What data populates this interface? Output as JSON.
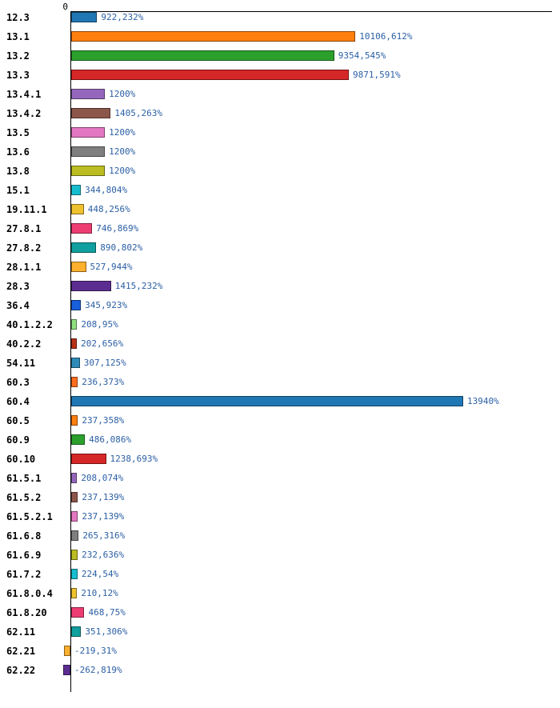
{
  "chart_data": {
    "type": "bar",
    "orientation": "horizontal",
    "title": "",
    "xlabel": "",
    "ylabel": "",
    "grid": false,
    "legend": false,
    "x_axis": {
      "zero_label": "0",
      "position": "top"
    },
    "xlim": [
      -300,
      17100
    ],
    "axis_color": "#000000",
    "category_label_color": "#000000",
    "value_label_color": "#2b5fa5",
    "categories": [
      "12.3",
      "13.1",
      "13.2",
      "13.3",
      "13.4.1",
      "13.4.2",
      "13.5",
      "13.6",
      "13.8",
      "15.1",
      "19.11.1",
      "27.8.1",
      "27.8.2",
      "28.1.1",
      "28.3",
      "36.4",
      "40.1.2.2",
      "40.2.2",
      "54.11",
      "60.3",
      "60.4",
      "60.5",
      "60.9",
      "60.10",
      "61.5.1",
      "61.5.2",
      "61.5.2.1",
      "61.6.8",
      "61.6.9",
      "61.7.2",
      "61.8.0.4",
      "61.8.20",
      "62.11",
      "62.21",
      "62.22"
    ],
    "values": [
      922.232,
      10106.612,
      9354.545,
      9871.591,
      1200,
      1405.263,
      1200,
      1200,
      1200,
      344.804,
      448.256,
      746.869,
      890.802,
      527.944,
      1415.232,
      345.923,
      208.95,
      202.656,
      307.125,
      236.373,
      13940,
      237.358,
      486.086,
      1238.693,
      208.074,
      237.139,
      237.139,
      265.316,
      232.636,
      224.54,
      210.12,
      468.75,
      351.306,
      -219.31,
      -262.819
    ],
    "value_labels": [
      "922,232%",
      "10106,612%",
      "9354,545%",
      "9871,591%",
      "1200%",
      "1405,263%",
      "1200%",
      "1200%",
      "1200%",
      "344,804%",
      "448,256%",
      "746,869%",
      "890,802%",
      "527,944%",
      "1415,232%",
      "345,923%",
      "208,95%",
      "202,656%",
      "307,125%",
      "236,373%",
      "13940%",
      "237,358%",
      "486,086%",
      "1238,693%",
      "208,074%",
      "237,139%",
      "237,139%",
      "265,316%",
      "232,636%",
      "224,54%",
      "210,12%",
      "468,75%",
      "351,306%",
      "-219,31%",
      "-262,819%"
    ],
    "bar_colors": [
      "#1f77b4",
      "#ff7f0e",
      "#2ca02c",
      "#d62728",
      "#9467bd",
      "#8c564b",
      "#e377c2",
      "#7f7f7f",
      "#bcbd22",
      "#17becf",
      "#eec12f",
      "#ee3d73",
      "#10a0a0",
      "#ffb02e",
      "#5c2d91",
      "#175fdb",
      "#90e080",
      "#b73119",
      "#2e8bb8",
      "#ff6d1f",
      "#1f77b4",
      "#ff7f0e",
      "#2ca02c",
      "#d62728",
      "#9467bd",
      "#8c564b",
      "#e377c2",
      "#7f7f7f",
      "#bcbd22",
      "#17becf",
      "#eec12f",
      "#ee3d73",
      "#10a0a0",
      "#ffb02e",
      "#5c2d91"
    ]
  }
}
